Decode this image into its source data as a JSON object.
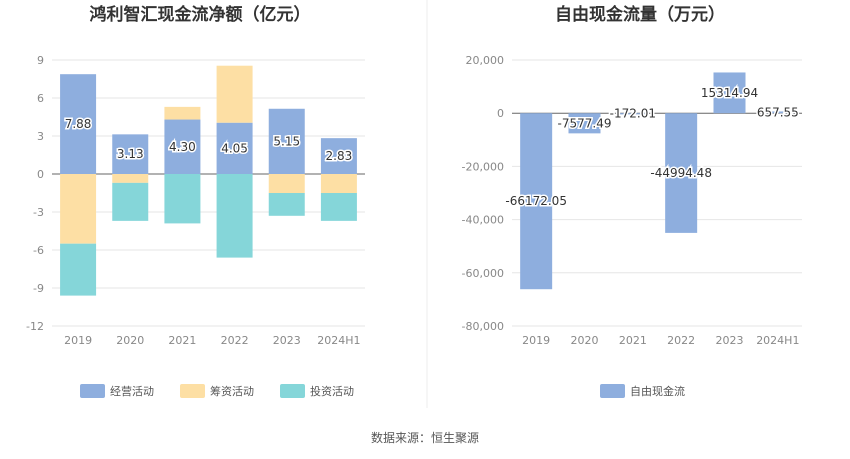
{
  "source": "数据来源：恒生聚源",
  "charts": [
    {
      "type": "bar",
      "stacked": true,
      "title": "鸿利智汇现金流净额（亿元）",
      "categories": [
        "2019",
        "2020",
        "2021",
        "2022",
        "2023",
        "2024H1"
      ],
      "ylim": [
        -12,
        9
      ],
      "yticks": [
        9,
        6,
        3,
        0,
        -3,
        -6,
        -9,
        -12
      ],
      "ytick_labels": [
        "9",
        "6",
        "3",
        "0",
        "-3",
        "-6",
        "-9",
        "-12"
      ],
      "grid": true,
      "legend_position": "bottom",
      "series": [
        {
          "name": "经营活动",
          "color": "#8eaede",
          "values": [
            7.88,
            3.13,
            4.3,
            4.05,
            5.15,
            2.83
          ],
          "data_labels": [
            "7.88",
            "3.13",
            "4.30",
            "4.05",
            "5.15",
            "2.83"
          ]
        },
        {
          "name": "筹资活动",
          "color": "#fddfa4",
          "values": [
            -5.5,
            -0.7,
            1.0,
            4.5,
            -1.5,
            -1.5
          ]
        },
        {
          "name": "投资活动",
          "color": "#85d6d9",
          "values": [
            -4.1,
            -3.0,
            -3.9,
            -6.6,
            -1.8,
            -2.2
          ]
        }
      ]
    },
    {
      "type": "bar",
      "title": "自由现金流量（万元）",
      "categories": [
        "2019",
        "2020",
        "2021",
        "2022",
        "2023",
        "2024H1"
      ],
      "ylim": [
        -80000,
        20000
      ],
      "yticks": [
        20000,
        0,
        -20000,
        -40000,
        -60000,
        -80000
      ],
      "ytick_labels": [
        "20,000",
        "0",
        "-20,000",
        "-40,000",
        "-60,000",
        "-80,000"
      ],
      "grid": true,
      "legend_position": "bottom",
      "series": [
        {
          "name": "自由现金流",
          "color": "#8eaede",
          "values": [
            -66172.05,
            -7577.49,
            -172.01,
            -44994.48,
            15314.94,
            657.55
          ],
          "data_labels": [
            "-66172.05",
            "-7577.49",
            "-172.01",
            "-44994.48",
            "15314.94",
            "657.55"
          ]
        }
      ]
    }
  ]
}
